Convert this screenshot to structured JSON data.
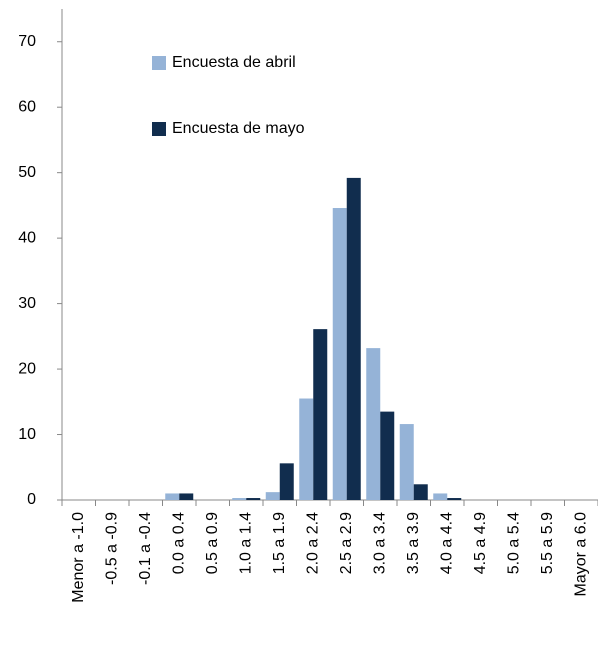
{
  "chart_data": {
    "type": "bar",
    "categories": [
      "Menor a -1.0",
      "-0.5 a -0.9",
      "-0.1 a -0.4",
      "0.0 a 0.4",
      "0.5 a 0.9",
      "1.0 a 1.4",
      "1.5 a 1.9",
      "2.0 a 2.4",
      "2.5 a 2.9",
      "3.0 a 3.4",
      "3.5 a 3.9",
      "4.0 a 4.4",
      "4.5 a 4.9",
      "5.0 a 5.4",
      "5.5 a 5.9",
      "Mayor a 6.0"
    ],
    "series": [
      {
        "name": "Encuesta de abril",
        "color": "#95b3d7",
        "values": [
          0,
          0,
          0,
          1,
          0,
          0.3,
          1.2,
          15.5,
          44.6,
          23.2,
          11.6,
          1,
          0,
          0,
          0,
          0
        ]
      },
      {
        "name": "Encuesta de mayo",
        "color": "#112d4e",
        "values": [
          0,
          0,
          0,
          1,
          0,
          0.3,
          5.6,
          26.1,
          49.2,
          13.5,
          2.4,
          0.3,
          0,
          0,
          0,
          0
        ]
      }
    ],
    "ylim": [
      0,
      75
    ],
    "yticks": [
      0,
      10,
      20,
      30,
      40,
      50,
      60,
      70
    ],
    "grid": false
  }
}
